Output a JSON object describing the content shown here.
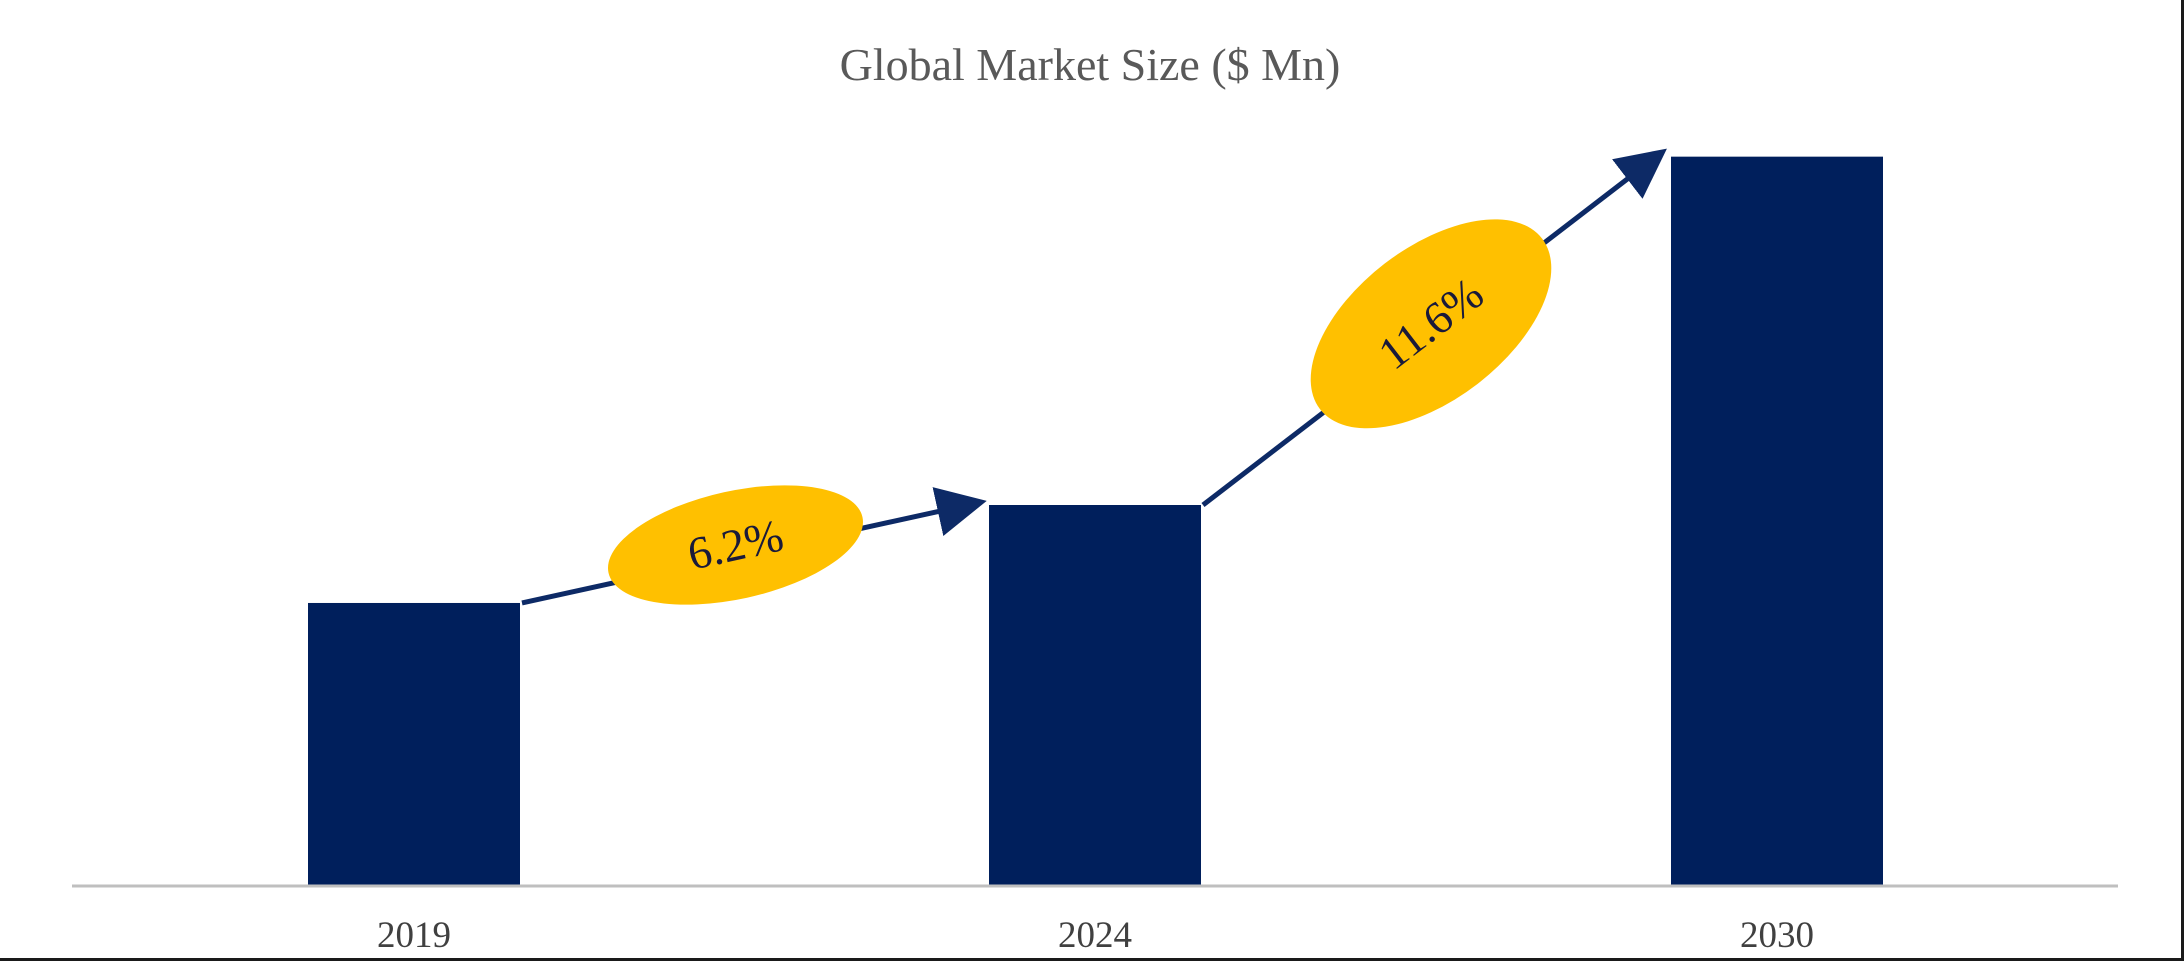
{
  "chart_data": {
    "type": "bar",
    "title": "Global Market Size ($ Mn)",
    "xlabel": "",
    "ylabel": "",
    "categories": [
      "2019",
      "2024",
      "2030"
    ],
    "values": [
      26,
      35,
      67
    ],
    "ylim": [
      0,
      70
    ],
    "grid": false,
    "legend": "none",
    "annotations": [
      {
        "label": "6.2%",
        "from": "2019",
        "to": "2024"
      },
      {
        "label": "11.6%",
        "from": "2024",
        "to": "2030"
      }
    ]
  },
  "colors": {
    "bar": "#001f5c",
    "arrow": "#0d2a66",
    "badge": "#ffc000",
    "axis": "#bfbfbf"
  }
}
